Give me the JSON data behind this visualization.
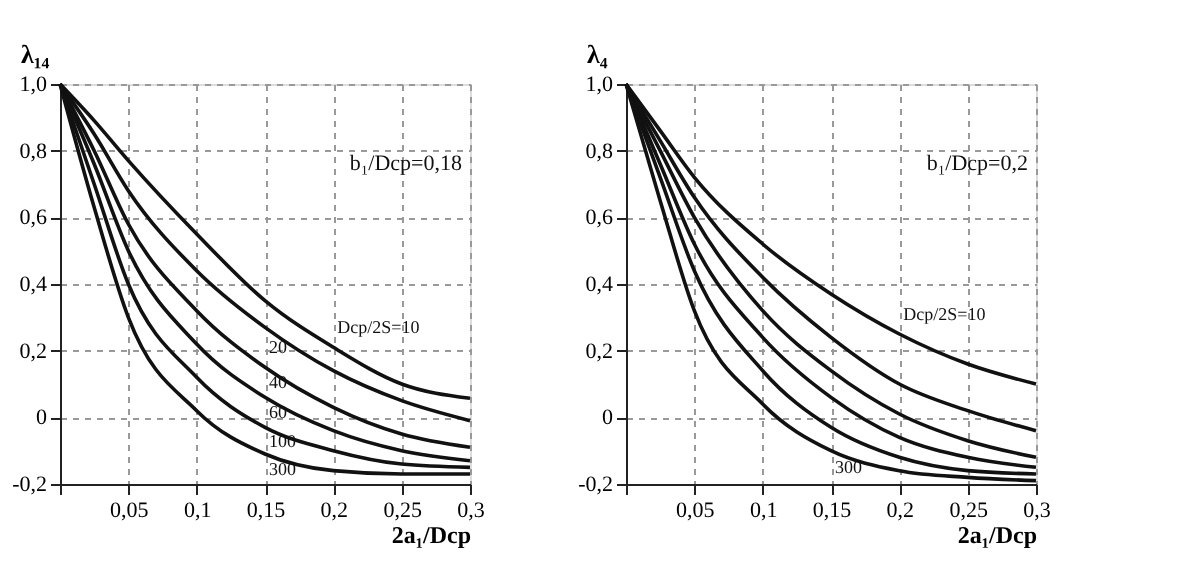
{
  "chart_data": [
    {
      "type": "line",
      "ylabel": "λ₁₄",
      "xlabel": "2a₁/Dср",
      "annotations": [
        "b₁/Dср=0,18"
      ],
      "x": [
        0,
        0.025,
        0.05,
        0.1,
        0.15,
        0.2,
        0.25,
        0.3
      ],
      "series": [
        {
          "name": "Dср/2S=10",
          "color": "#111111",
          "values": [
            1.0,
            0.89,
            0.77,
            0.55,
            0.35,
            0.21,
            0.1,
            0.057
          ]
        },
        {
          "name": "20",
          "color": "#111111",
          "values": [
            1.0,
            0.85,
            0.68,
            0.44,
            0.27,
            0.14,
            0.05,
            -0.01
          ]
        },
        {
          "name": "40",
          "color": "#111111",
          "values": [
            1.0,
            0.8,
            0.58,
            0.32,
            0.15,
            0.03,
            -0.05,
            -0.09
          ]
        },
        {
          "name": "60",
          "color": "#111111",
          "values": [
            1.0,
            0.76,
            0.5,
            0.22,
            0.06,
            -0.04,
            -0.1,
            -0.13
          ]
        },
        {
          "name": "100",
          "color": "#111111",
          "values": [
            1.0,
            0.7,
            0.4,
            0.12,
            -0.03,
            -0.1,
            -0.14,
            -0.15
          ]
        },
        {
          "name": "300",
          "color": "#111111",
          "values": [
            1.0,
            0.63,
            0.3,
            0.02,
            -0.11,
            -0.16,
            -0.17,
            -0.17
          ]
        }
      ],
      "xlim": [
        0,
        0.3
      ],
      "ylim": [
        -0.2,
        1.0
      ],
      "xticks": [
        {
          "value": 0,
          "label": null
        },
        {
          "value": 0.05,
          "label": "0,05"
        },
        {
          "value": 0.1,
          "label": "0,1"
        },
        {
          "value": 0.15,
          "label": "0,15"
        },
        {
          "value": 0.2,
          "label": "0,2"
        },
        {
          "value": 0.25,
          "label": "0,25"
        },
        {
          "value": 0.3,
          "label": "0,3"
        }
      ],
      "yticks": [
        {
          "value": -0.2,
          "label": "-0,2"
        },
        0,
        {
          "value": 0.2,
          "label": "0,2"
        },
        {
          "value": 0.4,
          "label": "0,4"
        },
        {
          "value": 0.6,
          "label": "0,6"
        },
        {
          "value": 0.8,
          "label": "0,8"
        },
        {
          "value": 1.0,
          "label": "1,0"
        }
      ],
      "grid": true,
      "marker": "none",
      "line_style": "solid"
    },
    {
      "type": "line",
      "ylabel": "λ₄",
      "xlabel": "2a₁/Dср",
      "annotations": [
        "b₁/Dср=0,2"
      ],
      "x": [
        0,
        0.025,
        0.05,
        0.1,
        0.15,
        0.2,
        0.25,
        0.3
      ],
      "series": [
        {
          "name": "Dср/2S=10",
          "color": "#111111",
          "values": [
            1.0,
            0.86,
            0.72,
            0.52,
            0.37,
            0.25,
            0.16,
            0.1
          ]
        },
        {
          "color": "#111111",
          "values": [
            1.0,
            0.83,
            0.66,
            0.42,
            0.24,
            0.1,
            0.02,
            -0.04
          ]
        },
        {
          "color": "#111111",
          "values": [
            1.0,
            0.8,
            0.6,
            0.32,
            0.14,
            0.01,
            -0.07,
            -0.12
          ]
        },
        {
          "color": "#111111",
          "values": [
            1.0,
            0.76,
            0.52,
            0.24,
            0.06,
            -0.06,
            -0.12,
            -0.15
          ]
        },
        {
          "color": "#111111",
          "values": [
            1.0,
            0.72,
            0.44,
            0.14,
            -0.03,
            -0.12,
            -0.16,
            -0.17
          ]
        },
        {
          "name": "300",
          "color": "#111111",
          "values": [
            1.0,
            0.65,
            0.32,
            0.04,
            -0.1,
            -0.16,
            -0.18,
            -0.19
          ]
        }
      ],
      "xlim": [
        0,
        0.3
      ],
      "ylim": [
        -0.2,
        1.0
      ],
      "xticks": [
        {
          "value": 0,
          "label": null
        },
        {
          "value": 0.05,
          "label": "0,05"
        },
        {
          "value": 0.1,
          "label": "0,1"
        },
        {
          "value": 0.15,
          "label": "0,15"
        },
        {
          "value": 0.2,
          "label": "0,2"
        },
        {
          "value": 0.25,
          "label": "0,25"
        },
        {
          "value": 0.3,
          "label": "0,3"
        }
      ],
      "yticks": [
        {
          "value": -0.2,
          "label": "-0,2"
        },
        0,
        {
          "value": 0.2,
          "label": "0,2"
        },
        {
          "value": 0.4,
          "label": "0,4"
        },
        {
          "value": 0.6,
          "label": "0,6"
        },
        {
          "value": 0.8,
          "label": "0,8"
        },
        {
          "value": 1.0,
          "label": "1,0"
        }
      ],
      "grid": true,
      "marker": "none",
      "line_style": "solid"
    }
  ]
}
